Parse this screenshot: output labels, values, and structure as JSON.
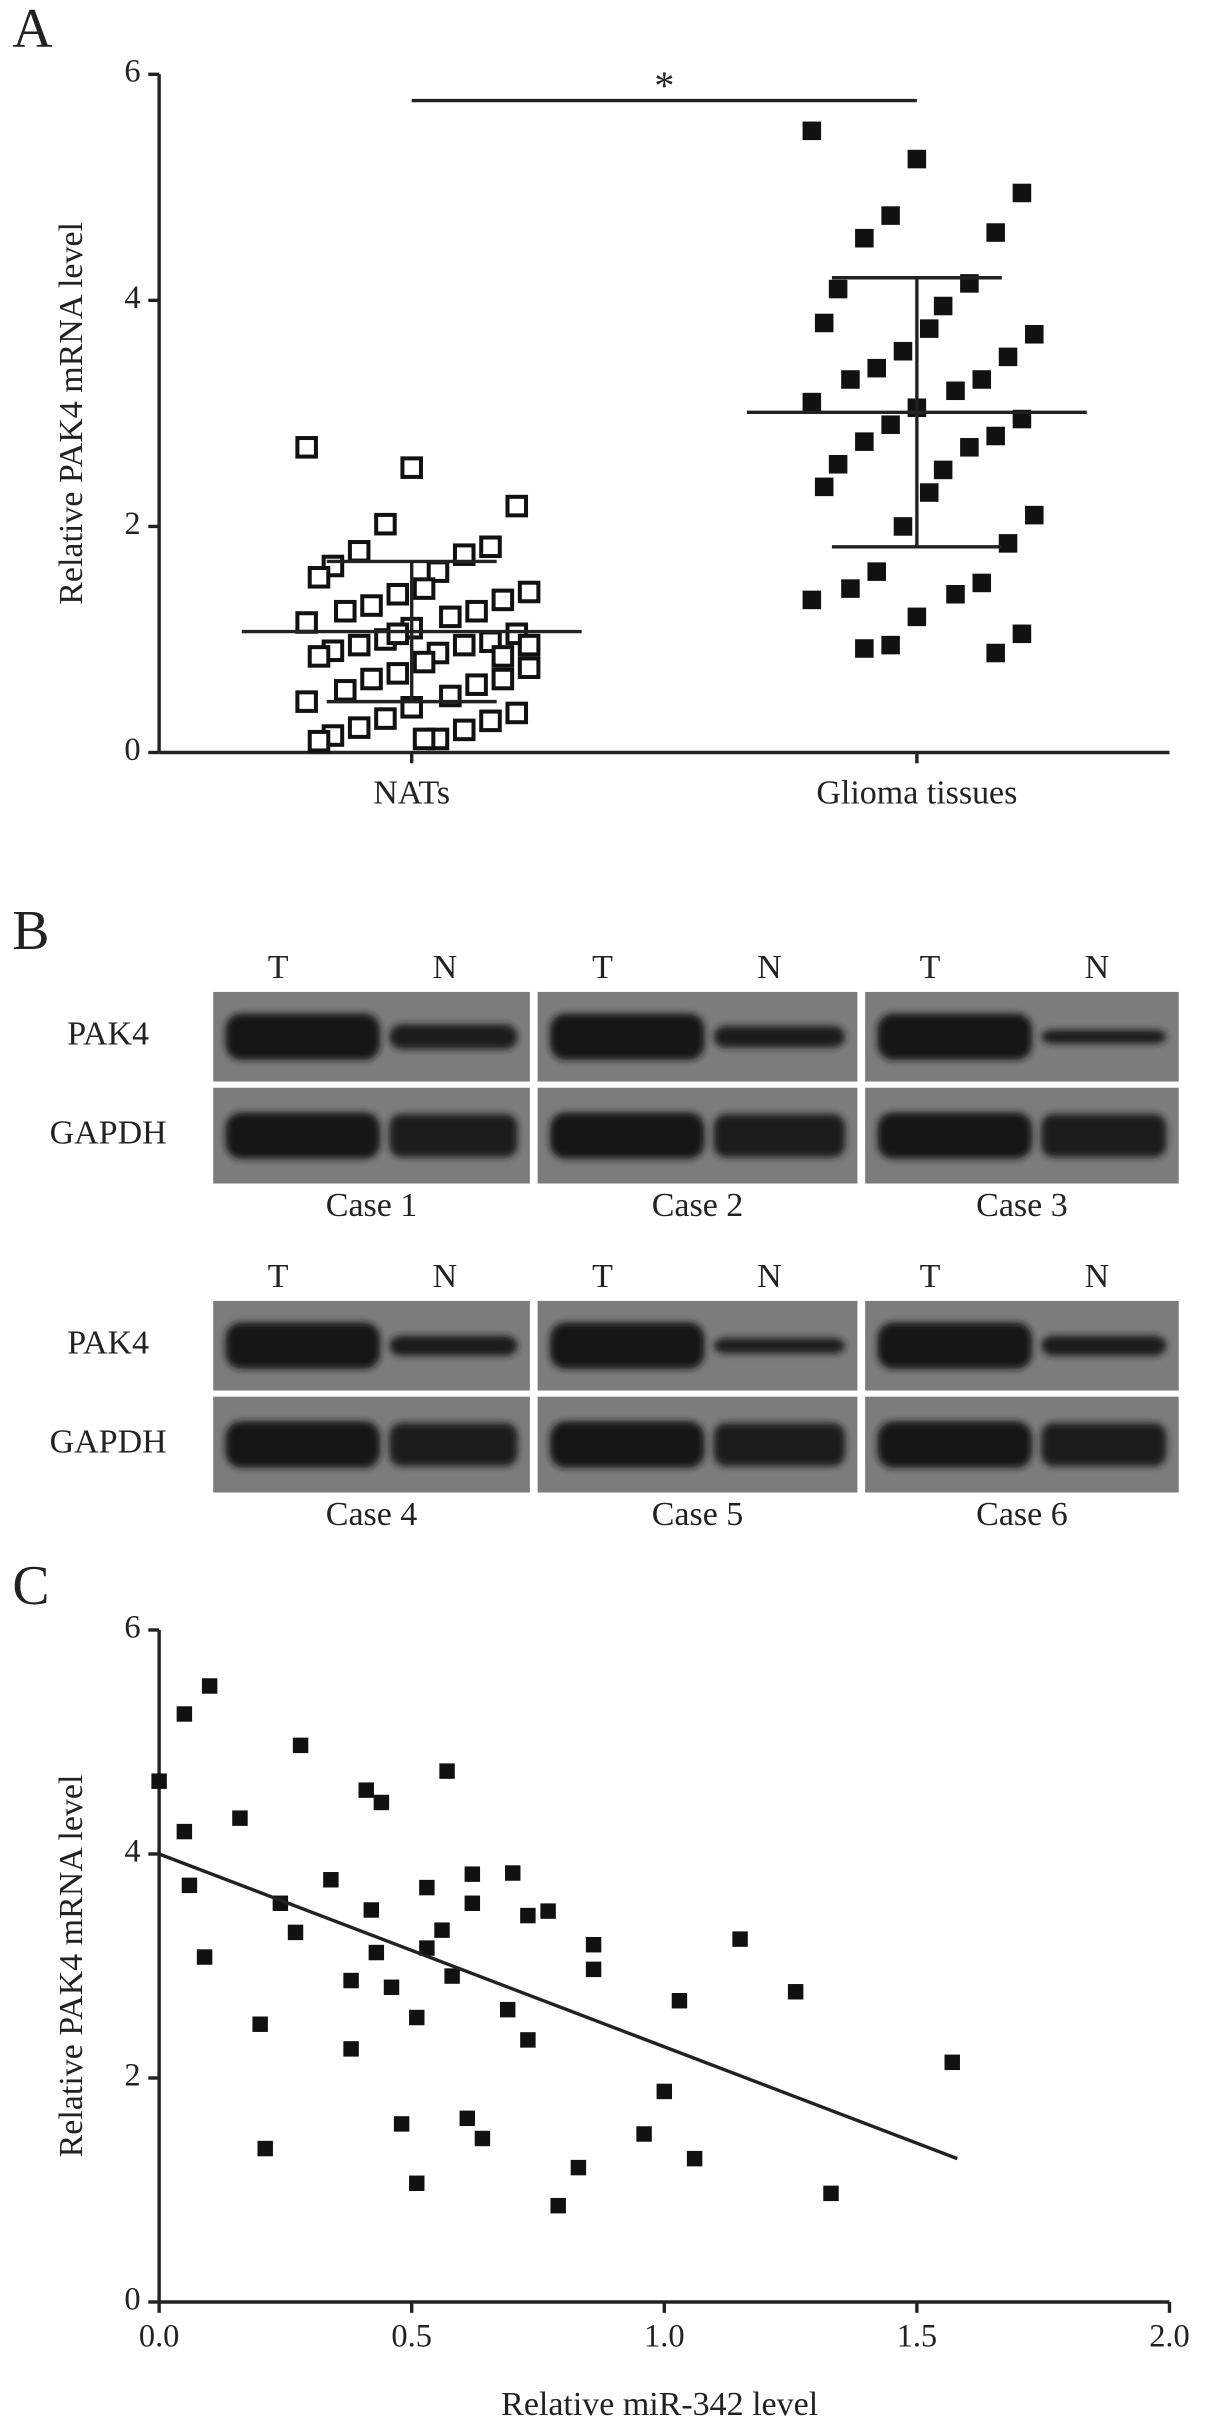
{
  "chart_data": [
    {
      "type": "strip",
      "panel": "A",
      "ylabel": "Relative PAK4 mRNA level",
      "categories": [
        "NATs",
        "Glioma tissues"
      ],
      "groups": [
        {
          "values": [
            2.7,
            2.52,
            2.18,
            2.02,
            1.82,
            1.78,
            1.75,
            1.65,
            1.6,
            1.55,
            1.45,
            1.42,
            1.4,
            1.35,
            1.3,
            1.25,
            1.25,
            1.2,
            1.15,
            1.1,
            1.05,
            1.0,
            0.98,
            0.95,
            0.95,
            0.9,
            0.88,
            0.85,
            0.8,
            0.75,
            0.7,
            0.65,
            0.65,
            0.6,
            0.55,
            0.5,
            0.45,
            0.4,
            0.35,
            0.3,
            0.28,
            0.22,
            0.2,
            0.15,
            0.12,
            0.1,
            0.12,
            0.95,
            1.05,
            0.85
          ],
          "mean": 1.07,
          "sd_upper": 1.69,
          "sd_lower": 0.45,
          "filled": false,
          "color": "#111111"
        },
        {
          "values": [
            5.5,
            5.25,
            4.95,
            4.75,
            4.6,
            4.55,
            4.15,
            4.1,
            3.95,
            3.8,
            3.75,
            3.7,
            3.55,
            3.5,
            3.4,
            3.3,
            3.3,
            3.2,
            3.1,
            3.05,
            2.95,
            2.9,
            2.8,
            2.75,
            2.7,
            2.55,
            2.5,
            2.35,
            2.3,
            2.1,
            2.0,
            1.85,
            1.6,
            1.5,
            1.45,
            1.4,
            1.35,
            1.2,
            1.05,
            0.95,
            0.88,
            0.92
          ],
          "mean": 3.01,
          "sd_upper": 4.2,
          "sd_lower": 1.82,
          "filled": true,
          "color": "#111111"
        }
      ],
      "ylim": [
        0,
        6
      ],
      "yticks": [
        0,
        2,
        4,
        6
      ],
      "annotation": "*"
    },
    {
      "type": "scatter",
      "panel": "C",
      "xlabel": "Relative miR-342 level",
      "ylabel": "Relative PAK4 mRNA level",
      "x": [
        0,
        0.05,
        0.1,
        0.05,
        0.06,
        0.09,
        0.16,
        0.2,
        0.21,
        0.24,
        0.27,
        0.28,
        0.34,
        0.38,
        0.38,
        0.41,
        0.42,
        0.43,
        0.44,
        0.46,
        0.48,
        0.51,
        0.51,
        0.53,
        0.53,
        0.56,
        0.57,
        0.58,
        0.61,
        0.62,
        0.62,
        0.64,
        0.69,
        0.7,
        0.73,
        0.73,
        0.77,
        0.79,
        0.83,
        0.86,
        0.86,
        0.96,
        1.0,
        1.03,
        1.06,
        1.15,
        1.26,
        1.33,
        1.57
      ],
      "y": [
        4.65,
        5.25,
        5.5,
        4.2,
        3.72,
        3.08,
        4.32,
        2.48,
        1.37,
        3.56,
        3.3,
        4.97,
        3.77,
        2.87,
        2.26,
        4.57,
        3.5,
        3.12,
        4.46,
        2.81,
        1.59,
        2.54,
        1.06,
        3.7,
        3.16,
        3.32,
        4.74,
        2.91,
        1.64,
        3.56,
        3.82,
        1.46,
        2.61,
        3.83,
        3.45,
        2.34,
        3.49,
        0.86,
        1.2,
        3.19,
        2.97,
        1.5,
        1.88,
        2.69,
        1.28,
        3.24,
        2.77,
        0.97,
        2.14
      ],
      "color": "#111111",
      "xlim": [
        0,
        2
      ],
      "xticks": [
        {
          "value": 0,
          "label": "0.0"
        },
        0.5,
        {
          "value": 1,
          "label": "1.0"
        },
        1.5,
        {
          "value": 2,
          "label": "2.0"
        }
      ],
      "ylim": [
        0,
        6
      ],
      "yticks": [
        0,
        2,
        4,
        6
      ],
      "trendline": {
        "x": [
          0,
          1.58
        ],
        "y": [
          4.0,
          1.28
        ]
      }
    }
  ],
  "blot": {
    "panel": "B",
    "lanes": [
      "T",
      "N"
    ],
    "rows": [
      "PAK4",
      "GAPDH"
    ],
    "cases": [
      "Case 1",
      "Case 2",
      "Case 3",
      "Case 4",
      "Case 5",
      "Case 6"
    ]
  }
}
